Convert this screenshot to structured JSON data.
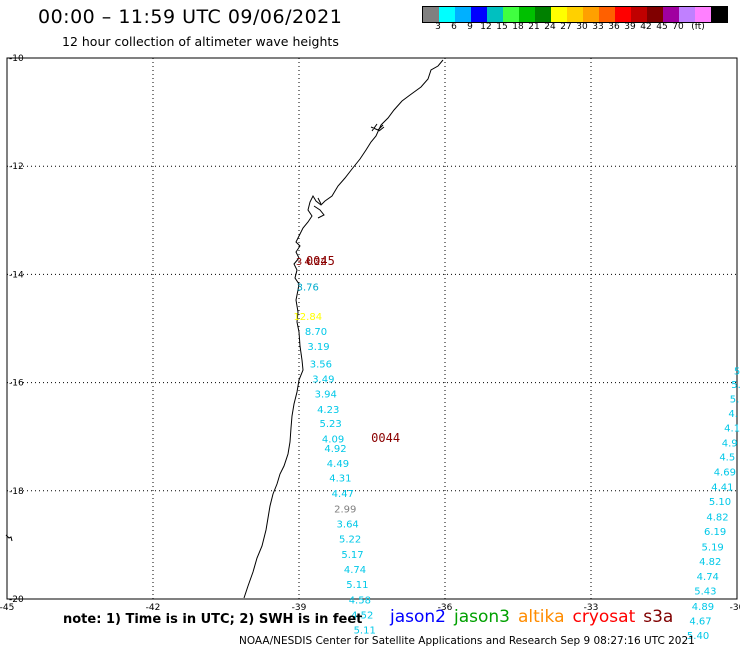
{
  "title": "00:00 – 11:59 UTC 09/06/2021",
  "subtitle": "12 hour collection of altimeter wave heights",
  "colorbar": {
    "unit": "(ft)",
    "colors": [
      "#808080",
      "#00ffff",
      "#00b0ff",
      "#0000ff",
      "#00c0c0",
      "#40ff40",
      "#00c000",
      "#008000",
      "#ffff00",
      "#ffd000",
      "#ffa000",
      "#ff6000",
      "#ff0000",
      "#c00000",
      "#800000",
      "#a000a0",
      "#c080ff",
      "#ff80ff",
      "#000000"
    ],
    "labels": [
      "3",
      "6",
      "9",
      "12",
      "15",
      "18",
      "21",
      "24",
      "27",
      "30",
      "33",
      "36",
      "39",
      "42",
      "45",
      "70"
    ]
  },
  "axes": {
    "lon_ticks": [
      "-45",
      "-42",
      "-39",
      "-36",
      "-33",
      "-30"
    ],
    "lat_ticks": [
      "-10",
      "-12",
      "-14",
      "-16",
      "-18",
      "-20"
    ],
    "lon_range": [
      -45,
      -30
    ],
    "lat_range": [
      -20,
      -10
    ]
  },
  "observations": [
    {
      "lon": -39.0,
      "lat": -13.83,
      "text": "3",
      "color": "#8b0000"
    },
    {
      "lon": -38.66,
      "lat": -13.83,
      "text": "4.22",
      "color": "#8b0000"
    },
    {
      "lon": -38.82,
      "lat": -14.3,
      "text": "3.76",
      "color": "#00aacc"
    },
    {
      "lon": -38.82,
      "lat": -14.84,
      "text": "12.84",
      "color": "#ffff00"
    },
    {
      "lon": -38.65,
      "lat": -15.12,
      "text": "8.70",
      "color": "#00c8e8"
    },
    {
      "lon": -38.6,
      "lat": -15.4,
      "text": "3.19",
      "color": "#00c8e8"
    },
    {
      "lon": -38.55,
      "lat": -15.72,
      "text": "3.56",
      "color": "#00c8e8"
    },
    {
      "lon": -38.5,
      "lat": -16.0,
      "text": "3.49",
      "color": "#00c8e8"
    },
    {
      "lon": -38.45,
      "lat": -16.28,
      "text": "3.94",
      "color": "#00c8e8"
    },
    {
      "lon": -38.4,
      "lat": -16.56,
      "text": "4.23",
      "color": "#00c8e8"
    },
    {
      "lon": -38.35,
      "lat": -16.82,
      "text": "5.23",
      "color": "#00c8e8"
    },
    {
      "lon": -38.3,
      "lat": -17.11,
      "text": "4.09",
      "color": "#00c8e8"
    },
    {
      "lon": -38.25,
      "lat": -17.28,
      "text": "4.92",
      "color": "#00c8e8"
    },
    {
      "lon": -38.2,
      "lat": -17.56,
      "text": "4.49",
      "color": "#00c8e8"
    },
    {
      "lon": -38.15,
      "lat": -17.83,
      "text": "4.31",
      "color": "#00c8e8"
    },
    {
      "lon": -38.1,
      "lat": -18.11,
      "text": "4.47",
      "color": "#00c8e8"
    },
    {
      "lon": -38.05,
      "lat": -18.4,
      "text": "2.99",
      "color": "#808080"
    },
    {
      "lon": -38.0,
      "lat": -18.68,
      "text": "3.64",
      "color": "#00c8e8"
    },
    {
      "lon": -37.95,
      "lat": -18.96,
      "text": "5.22",
      "color": "#00c8e8"
    },
    {
      "lon": -37.9,
      "lat": -19.24,
      "text": "5.17",
      "color": "#00c8e8"
    },
    {
      "lon": -37.85,
      "lat": -19.52,
      "text": "4.74",
      "color": "#00c8e8"
    },
    {
      "lon": -37.8,
      "lat": -19.8,
      "text": "5.11",
      "color": "#00c8e8"
    },
    {
      "lon": -37.75,
      "lat": -20.08,
      "text": "4.58",
      "color": "#00c8e8"
    },
    {
      "lon": -37.7,
      "lat": -20.36,
      "text": "4.52",
      "color": "#00c8e8"
    },
    {
      "lon": -37.65,
      "lat": -20.64,
      "text": "5.11",
      "color": "#00c8e8"
    },
    {
      "lon": -30.0,
      "lat": -15.85,
      "text": "5",
      "color": "#00c8e8"
    },
    {
      "lon": -30.02,
      "lat": -16.1,
      "text": "5.",
      "color": "#00c8e8"
    },
    {
      "lon": -30.05,
      "lat": -16.37,
      "text": "5.",
      "color": "#00c8e8"
    },
    {
      "lon": -30.08,
      "lat": -16.64,
      "text": "4.",
      "color": "#00c8e8"
    },
    {
      "lon": -30.1,
      "lat": -16.9,
      "text": "4.1",
      "color": "#00c8e8"
    },
    {
      "lon": -30.15,
      "lat": -17.18,
      "text": "4.9",
      "color": "#00c8e8"
    },
    {
      "lon": -30.2,
      "lat": -17.44,
      "text": "4.5",
      "color": "#00c8e8"
    },
    {
      "lon": -30.25,
      "lat": -17.72,
      "text": "4.69",
      "color": "#00c8e8"
    },
    {
      "lon": -30.3,
      "lat": -17.99,
      "text": "4.41",
      "color": "#00c8e8"
    },
    {
      "lon": -30.35,
      "lat": -18.26,
      "text": "5.10",
      "color": "#00c8e8"
    },
    {
      "lon": -30.4,
      "lat": -18.55,
      "text": "4.82",
      "color": "#00c8e8"
    },
    {
      "lon": -30.45,
      "lat": -18.82,
      "text": "6.19",
      "color": "#00c8e8"
    },
    {
      "lon": -30.5,
      "lat": -19.1,
      "text": "5.19",
      "color": "#00c8e8"
    },
    {
      "lon": -30.55,
      "lat": -19.37,
      "text": "4.82",
      "color": "#00c8e8"
    },
    {
      "lon": -30.6,
      "lat": -19.65,
      "text": "4.74",
      "color": "#00c8e8"
    },
    {
      "lon": -30.65,
      "lat": -19.92,
      "text": "5.43",
      "color": "#00c8e8"
    },
    {
      "lon": -30.7,
      "lat": -20.2,
      "text": "4.89",
      "color": "#00c8e8"
    },
    {
      "lon": -30.75,
      "lat": -20.47,
      "text": "4.67",
      "color": "#00c8e8"
    },
    {
      "lon": -30.8,
      "lat": -20.74,
      "text": "5.40",
      "color": "#00c8e8"
    }
  ],
  "stations": [
    {
      "lon": -38.56,
      "lat": -13.83,
      "text": "0045",
      "color": "#8b0000"
    },
    {
      "lon": -37.22,
      "lat": -17.1,
      "text": "0044",
      "color": "#8b0000"
    }
  ],
  "note": "note: 1) Time is in UTC; 2) SWH is in feet",
  "legend": [
    {
      "text": "jason2",
      "color": "#0000ff"
    },
    {
      "text": "jason3",
      "color": "#00a000"
    },
    {
      "text": "altika",
      "color": "#ff8c00"
    },
    {
      "text": "cryosat",
      "color": "#ff0000"
    },
    {
      "text": "s3a",
      "color": "#800000"
    }
  ],
  "credit": "NOAA/NESDIS Center for Satellite Applications and Research    Sep  9 08:27:16 UTC 2021"
}
